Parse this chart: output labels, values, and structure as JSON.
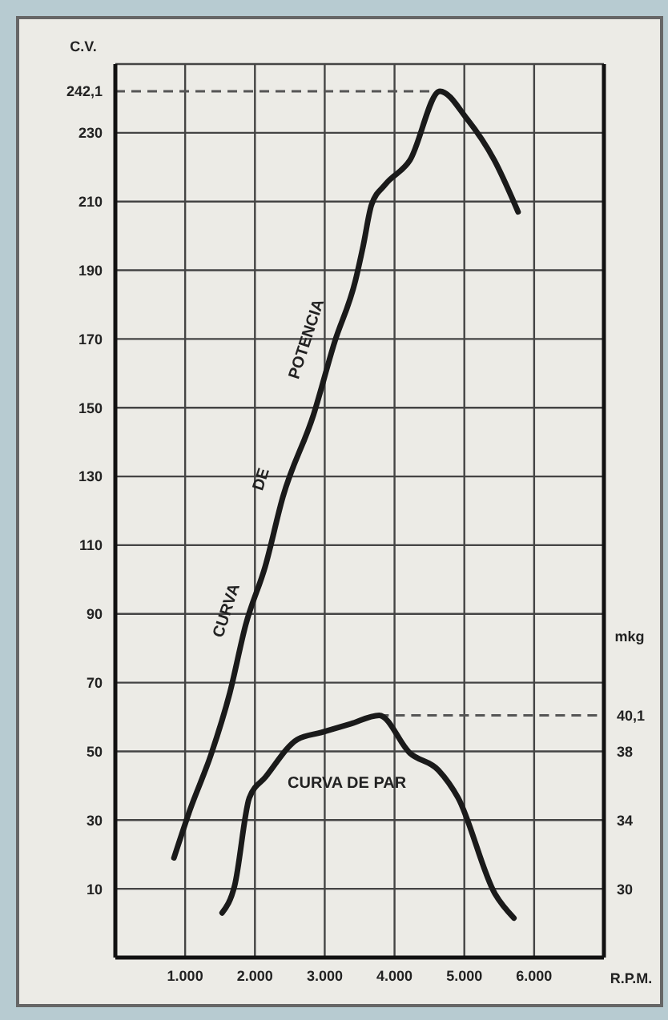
{
  "chart_data": {
    "type": "line",
    "xlabel": "R.P.M.",
    "ylabel": "C.V.",
    "y2label": "mkg",
    "xlim": [
      0,
      7000
    ],
    "xticks": [
      {
        "value": 1000,
        "label": "1.000"
      },
      {
        "value": 2000,
        "label": "2.000"
      },
      {
        "value": 3000,
        "label": "3.000"
      },
      {
        "value": 4000,
        "label": "4.000"
      },
      {
        "value": 5000,
        "label": "5.000"
      },
      {
        "value": 6000,
        "label": "6.000"
      }
    ],
    "ylim": [
      -10,
      250
    ],
    "yticks": [
      10,
      30,
      50,
      70,
      90,
      110,
      130,
      150,
      170,
      190,
      210,
      230,
      {
        "value": 242.1,
        "label": "242,1"
      }
    ],
    "y2lim": [
      26,
      78
    ],
    "y2ticks": [
      30,
      34,
      38,
      {
        "value": 40.1,
        "label": "40,1"
      }
    ],
    "grid": true,
    "marker": "none",
    "line_style": "solid",
    "series": [
      {
        "color": "#1a1a1a",
        "x": [
          840,
          1070,
          1370,
          1640,
          1870,
          2150,
          2400,
          2840,
          3140,
          3440,
          3550,
          3670,
          3870,
          4220,
          4650,
          5040,
          5430,
          5770
        ],
        "values": [
          19,
          33,
          49,
          67,
          87,
          104,
          124,
          148,
          169,
          187,
          197,
          209,
          215,
          222,
          242.1,
          234,
          222,
          207
        ]
      },
      {
        "color": "#1a1a1a",
        "axis": "y2",
        "x": [
          1530,
          1710,
          1920,
          2150,
          2610,
          2950,
          3370,
          3780,
          4220,
          4630,
          4910,
          5440,
          5710
        ],
        "values": [
          28.6,
          30.2,
          35.3,
          36.5,
          38.7,
          39.1,
          39.6,
          40.1,
          37.9,
          36.9,
          35.3,
          29.7,
          28.3
        ]
      }
    ],
    "ref_lines": [
      {
        "axis": "y",
        "value": 242.1,
        "line_style": "dashed",
        "color": "#555555"
      },
      {
        "axis": "y2",
        "value": 40.1,
        "line_style": "dashed",
        "color": "#555555"
      }
    ],
    "annotations": [
      "CURVA",
      "DE",
      "POTENCIA",
      "CURVA DE PAR"
    ]
  }
}
